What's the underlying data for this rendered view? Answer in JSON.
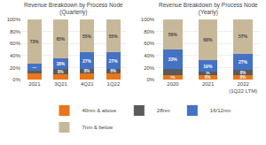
{
  "chart_data": [
    {
      "type": "bar",
      "title": "Revenue Breakdown by Process Node\n(Quarterly)",
      "categories": [
        "2021",
        "3Q21",
        "4Q21",
        "1Q22"
      ],
      "stacked": true,
      "data_labels": true,
      "grid": true,
      "legend": "bottom",
      "ylim": [
        0,
        100
      ],
      "yticks": [
        {
          "value": 0,
          "label": "0%"
        },
        {
          "value": 20,
          "label": "20%"
        },
        {
          "value": 40,
          "label": "40%"
        },
        {
          "value": 60,
          "label": "60%"
        },
        {
          "value": 80,
          "label": "80%"
        },
        {
          "value": 100,
          "label": "100%"
        }
      ],
      "series": [
        {
          "name": "40nm & above",
          "color": "#E8761A",
          "values": [
            10,
            9,
            10,
            10
          ],
          "value_labels": [
            "10%",
            "9%",
            "10%",
            "10%"
          ]
        },
        {
          "name": "28nm",
          "color": "#5A5A5A",
          "values": [
            4,
            8,
            8,
            8
          ],
          "value_labels": [
            null,
            "8%",
            "8%",
            "8%"
          ]
        },
        {
          "name": "16/12nm",
          "color": "#4472C4",
          "values": [
            13,
            18,
            27,
            27
          ],
          "value_labels": [
            "13%",
            "18%",
            "27%",
            "27%"
          ]
        },
        {
          "name": "7nm & below",
          "color": "#C8B89A",
          "values": [
            73,
            65,
            55,
            55
          ],
          "value_labels": [
            "73%",
            "65%",
            "55%",
            "55%"
          ]
        }
      ]
    },
    {
      "type": "bar",
      "title": "Revenue Breakdown by Process Node\n(Yearly)",
      "categories": [
        "2020",
        "2021",
        "2022\n(1Q22 LTM)"
      ],
      "stacked": true,
      "data_labels": true,
      "grid": true,
      "legend": "bottom",
      "ylim": [
        0,
        100
      ],
      "yticks": [
        {
          "value": 0,
          "label": "0%"
        },
        {
          "value": 20,
          "label": "20%"
        },
        {
          "value": 40,
          "label": "40%"
        },
        {
          "value": 60,
          "label": "60%"
        },
        {
          "value": 80,
          "label": "80%"
        },
        {
          "value": 100,
          "label": "100%"
        }
      ],
      "series": [
        {
          "name": "40nm & above",
          "color": "#E8761A",
          "values": [
            7,
            8,
            8
          ],
          "value_labels": [
            "7%",
            "8%",
            "8%"
          ]
        },
        {
          "name": "28nm",
          "color": "#5A5A5A",
          "values": [
            10,
            5,
            8
          ],
          "value_labels": [
            "10%",
            "5%",
            "8%"
          ]
        },
        {
          "name": "16/12nm",
          "color": "#4472C4",
          "values": [
            33,
            19,
            27
          ],
          "value_labels": [
            "33%",
            "19%",
            "27%"
          ]
        },
        {
          "name": "7nm & below",
          "color": "#C8B89A",
          "values": [
            50,
            68,
            57
          ],
          "value_labels": [
            "50%",
            "68%",
            "57%"
          ]
        }
      ]
    }
  ]
}
